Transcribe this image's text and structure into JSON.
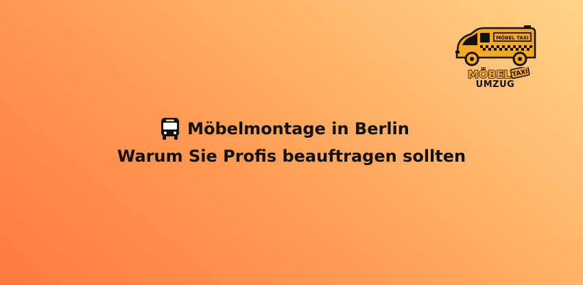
{
  "headline": {
    "line1": "Möbelmontage in Berlin",
    "line2": "Warum Sie Profis beauftragen sollten",
    "icon": "bus-icon"
  },
  "logo": {
    "van_sign": "MÖBEL TAXI",
    "word": "MÖBEL",
    "taxi_tag": "TAXI",
    "subtitle": "UMZUG"
  },
  "colors": {
    "gradient_start": "#ff7a3d",
    "gradient_end": "#ffd488",
    "logo_orange": "#f7a823",
    "text": "#111111"
  }
}
